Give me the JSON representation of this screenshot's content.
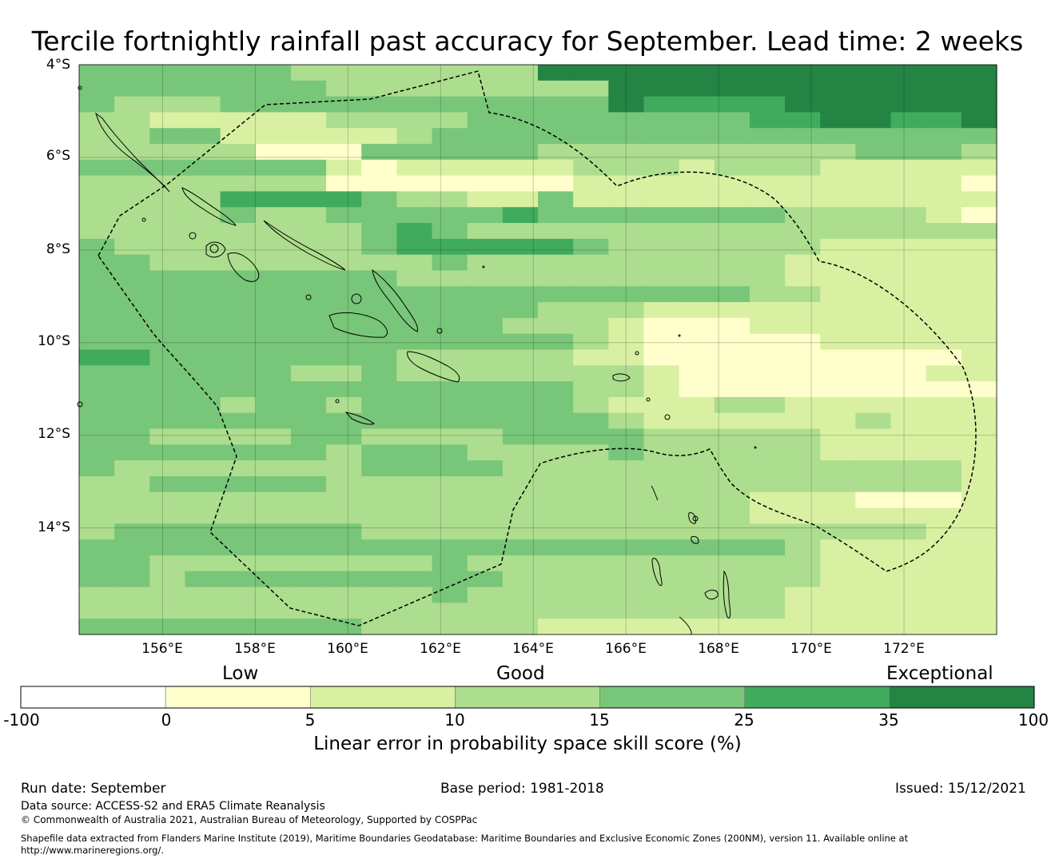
{
  "title": "Tercile fortnightly rainfall past accuracy for September. Lead time: 2 weeks",
  "map": {
    "lat_labels": [
      "4°S",
      "6°S",
      "8°S",
      "10°S",
      "12°S",
      "14°S"
    ],
    "lon_labels": [
      "156°E",
      "158°E",
      "160°E",
      "162°E",
      "164°E",
      "166°E",
      "168°E",
      "170°E",
      "172°E"
    ],
    "cell_size_deg": 0.8333,
    "lon_range": [
      154.2,
      174.0
    ],
    "lat_range": [
      -16.3,
      -4.0
    ],
    "grid_rows": [
      "44444433333336666666666666",
      "44444443333333366666666666",
      "43334444444444465555666666",
      "33222223333444444445566556",
      "33442222234444444444444444",
      "33333111444443333333334443",
      "44444442122222333233322222",
      "33333331111111222222222221",
      "33335555433224222222222222",
      "33334334444454444444333321",
      "33333333454333333333333333",
      "43333333455555433333322222",
      "44333333334333333333222222",
      "44444444433333333333222222",
      "44444444444444444443322222",
      "44444444444443332222222222",
      "44444444444433321112222222",
      "44444444444444321111122222",
      "55444444433333221111111112",
      "44444433433333332111111122",
      "44444444444444332111111111",
      "44443443444444322233222222",
      "44444444444444432222223222",
      "44333344333344443333322222",
      "44444443444333343333322222",
      "43333333444433333333333332",
      "33444443333333333333333332",
      "33333333333333333332221112",
      "33333333333333333332222222",
      "34444444333333333333333322",
      "44444444444444444444322222",
      "44333333334333333333322222",
      "44344444444433333333322222",
      "33333333334333333333222222",
      "33333333333333333333222222",
      "44444444333332222222222222"
    ],
    "colors": [
      "#ffffff",
      "#ffffcc",
      "#d9f0a3",
      "#addd8e",
      "#78c679",
      "#41ab5d",
      "#238443"
    ]
  },
  "legend": {
    "categories": [
      "Low",
      "Good",
      "Exceptional"
    ],
    "ticks": [
      "-100",
      "0",
      "5",
      "10",
      "15",
      "25",
      "35",
      "100"
    ],
    "colors": [
      "#ffffff",
      "#ffffcc",
      "#d9f0a3",
      "#addd8e",
      "#78c679",
      "#41ab5d",
      "#238443"
    ],
    "title": "Linear error in probability space skill score (%)"
  },
  "footer": {
    "run_date": "Run date: September",
    "base_period": "Base period: 1981-2018",
    "issued": "Issued: 15/12/2021",
    "data_source": "Data source: ACCESS-S2 and ERA5 Climate Reanalysis",
    "copyright": "© Commonwealth of Australia 2021, Australian Bureau of Meteorology, Supported by COSPPac",
    "shapefile_1": "Shapefile data extracted from Flanders Marine Institute (2019), Maritime Boundaries Geodatabase: Maritime Boundaries and Exclusive Economic Zones (200NM), version 11. Available online at",
    "shapefile_2": "http://www.marineregions.org/."
  }
}
